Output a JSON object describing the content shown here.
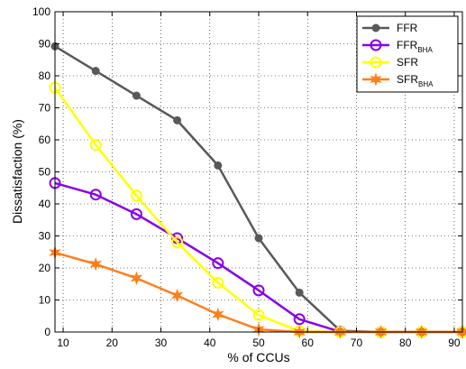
{
  "chart_data": {
    "type": "line",
    "xlabel": "% of CCUs",
    "ylabel": "Dissatisfaction (%)",
    "xlim": [
      8.33,
      91.67
    ],
    "ylim": [
      0,
      100
    ],
    "xticks": [
      10,
      20,
      30,
      40,
      50,
      60,
      70,
      80,
      90
    ],
    "yticks": [
      0,
      10,
      20,
      30,
      40,
      50,
      60,
      70,
      80,
      90,
      100
    ],
    "grid": "dotted",
    "legend_position": "top-right",
    "x": [
      8.33,
      16.67,
      25,
      33.33,
      41.67,
      50,
      58.33,
      66.67,
      75,
      83.33,
      91.67
    ],
    "series": [
      {
        "name": "FFR",
        "sub": "",
        "color": "#595959",
        "marker": "dot",
        "values": [
          89.2,
          81.5,
          73.8,
          66.1,
          52.0,
          29.3,
          12.3,
          0.4,
          0,
          0,
          0
        ]
      },
      {
        "name": "FFR",
        "sub": "BHA",
        "color": "#8a00e6",
        "marker": "circle",
        "values": [
          46.5,
          42.9,
          36.8,
          29.3,
          21.5,
          13.0,
          4.0,
          0.1,
          0,
          0,
          0
        ]
      },
      {
        "name": "SFR",
        "sub": "",
        "color": "#ffff00",
        "marker": "circle",
        "values": [
          76.3,
          58.4,
          42.6,
          28.0,
          15.4,
          5.3,
          0.3,
          0,
          0,
          0,
          0
        ]
      },
      {
        "name": "SFR",
        "sub": "BHA",
        "color": "#ff7f1a",
        "marker": "star",
        "values": [
          24.8,
          21.2,
          16.8,
          11.4,
          5.5,
          0.8,
          0,
          0,
          0,
          0,
          0
        ]
      }
    ]
  }
}
